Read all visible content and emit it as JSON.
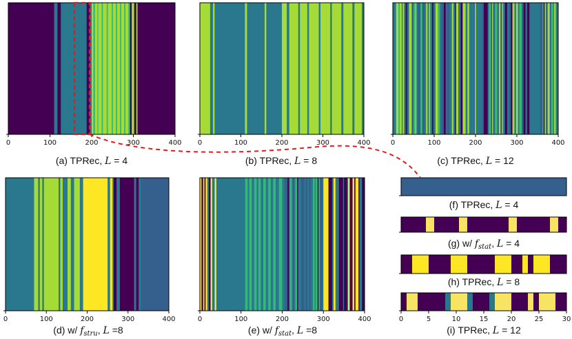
{
  "colors": {
    "dark": "#440154",
    "teal": "#2a788e",
    "slate": "#355f8d",
    "green": "#35b779",
    "lime": "#a5db36",
    "yellow": "#fde725",
    "paleyellow": "#f7e463",
    "highlight": "#e31a1c"
  },
  "chart_data": [
    {
      "id": "a",
      "type": "heatmap",
      "xlim": [
        0,
        400
      ],
      "xticks": [
        0,
        100,
        200,
        300,
        400
      ],
      "caption": {
        "prefix": "(a) TPRec, ",
        "var": "L",
        "eq": " = 4"
      },
      "bands": [
        [
          0,
          110,
          "dark"
        ],
        [
          110,
          118,
          "teal"
        ],
        [
          118,
          126,
          "dark"
        ],
        [
          126,
          188,
          "teal"
        ],
        [
          188,
          196,
          "dark"
        ],
        [
          196,
          200,
          "teal"
        ],
        [
          200,
          204,
          "lime"
        ],
        [
          204,
          208,
          "green"
        ],
        [
          208,
          214,
          "lime"
        ],
        [
          214,
          216,
          "green"
        ],
        [
          216,
          224,
          "lime"
        ],
        [
          224,
          227,
          "green"
        ],
        [
          227,
          236,
          "lime"
        ],
        [
          236,
          239,
          "green"
        ],
        [
          239,
          248,
          "lime"
        ],
        [
          248,
          251,
          "green"
        ],
        [
          251,
          258,
          "lime"
        ],
        [
          258,
          261,
          "green"
        ],
        [
          261,
          268,
          "lime"
        ],
        [
          268,
          271,
          "green"
        ],
        [
          271,
          278,
          "lime"
        ],
        [
          278,
          281,
          "green"
        ],
        [
          281,
          288,
          "lime"
        ],
        [
          288,
          292,
          "green"
        ],
        [
          292,
          296,
          "dark"
        ],
        [
          296,
          302,
          "lime"
        ],
        [
          302,
          307,
          "dark"
        ],
        [
          307,
          310,
          "lime"
        ],
        [
          310,
          400,
          "dark"
        ]
      ]
    },
    {
      "id": "b",
      "type": "heatmap",
      "xlim": [
        0,
        400
      ],
      "xticks": [
        0,
        100,
        200,
        300,
        400
      ],
      "caption": {
        "prefix": "(b) TPRec, ",
        "var": "L",
        "eq": " = 8"
      },
      "bands": [
        [
          0,
          25,
          "lime"
        ],
        [
          25,
          32,
          "teal"
        ],
        [
          32,
          36,
          "lime"
        ],
        [
          36,
          110,
          "teal"
        ],
        [
          110,
          115,
          "lime"
        ],
        [
          115,
          158,
          "teal"
        ],
        [
          158,
          162,
          "lime"
        ],
        [
          162,
          200,
          "teal"
        ],
        [
          200,
          212,
          "lime"
        ],
        [
          212,
          218,
          "teal"
        ],
        [
          218,
          240,
          "lime"
        ],
        [
          240,
          244,
          "teal"
        ],
        [
          244,
          262,
          "lime"
        ],
        [
          262,
          266,
          "teal"
        ],
        [
          266,
          290,
          "lime"
        ],
        [
          290,
          294,
          "teal"
        ],
        [
          294,
          318,
          "lime"
        ],
        [
          318,
          322,
          "teal"
        ],
        [
          322,
          345,
          "lime"
        ],
        [
          345,
          350,
          "teal"
        ],
        [
          350,
          372,
          "lime"
        ],
        [
          372,
          377,
          "teal"
        ],
        [
          377,
          395,
          "lime"
        ],
        [
          395,
          400,
          "teal"
        ]
      ]
    },
    {
      "id": "c",
      "type": "heatmap",
      "xlim": [
        0,
        400
      ],
      "xticks": [
        0,
        100,
        200,
        300,
        400
      ],
      "caption": {
        "prefix": "(c) TPRec, ",
        "var": "L",
        "eq": " = 12"
      },
      "pattern": {
        "seed": 17,
        "minWidth": 2,
        "maxWidth": 6,
        "palette": [
          "teal",
          "lime",
          "slate",
          "teal",
          "green",
          "dark",
          "lime",
          "teal"
        ]
      }
    },
    {
      "id": "d",
      "type": "heatmap",
      "xlim": [
        0,
        400
      ],
      "xticks": [
        0,
        100,
        200,
        300,
        400
      ],
      "caption": {
        "prefix": "(d) w/ ",
        "var": "f",
        "sub": "stru",
        "mid": ", ",
        "var2": "L",
        "eq": " =8"
      },
      "bands": [
        [
          0,
          70,
          "teal"
        ],
        [
          70,
          80,
          "lime"
        ],
        [
          80,
          84,
          "teal"
        ],
        [
          84,
          90,
          "lime"
        ],
        [
          90,
          94,
          "teal"
        ],
        [
          94,
          130,
          "lime"
        ],
        [
          130,
          134,
          "teal"
        ],
        [
          134,
          140,
          "lime"
        ],
        [
          140,
          152,
          "teal"
        ],
        [
          152,
          160,
          "lime"
        ],
        [
          160,
          168,
          "teal"
        ],
        [
          168,
          182,
          "lime"
        ],
        [
          182,
          190,
          "teal"
        ],
        [
          190,
          250,
          "yellow"
        ],
        [
          250,
          256,
          "teal"
        ],
        [
          256,
          262,
          "yellow"
        ],
        [
          262,
          265,
          "teal"
        ],
        [
          265,
          272,
          "dark"
        ],
        [
          272,
          280,
          "teal"
        ],
        [
          280,
          284,
          "dark"
        ],
        [
          284,
          315,
          "dark"
        ],
        [
          315,
          320,
          "teal"
        ],
        [
          320,
          326,
          "dark"
        ],
        [
          326,
          332,
          "teal"
        ],
        [
          332,
          400,
          "slate"
        ]
      ]
    },
    {
      "id": "e",
      "type": "heatmap",
      "xlim": [
        0,
        400
      ],
      "xticks": [
        0,
        100,
        200,
        300,
        400
      ],
      "caption": {
        "prefix": "(e) w/ ",
        "var": "f",
        "sub": "stat",
        "mid": ", ",
        "var2": "L",
        "eq": " =8"
      },
      "bands": [
        [
          0,
          4,
          "yellow"
        ],
        [
          4,
          8,
          "dark"
        ],
        [
          8,
          11,
          "yellow"
        ],
        [
          11,
          14,
          "dark"
        ],
        [
          14,
          18,
          "yellow"
        ],
        [
          18,
          22,
          "teal"
        ],
        [
          22,
          26,
          "dark"
        ],
        [
          26,
          30,
          "yellow"
        ],
        [
          30,
          36,
          "teal"
        ],
        [
          36,
          40,
          "yellow"
        ],
        [
          40,
          110,
          "teal"
        ],
        [
          110,
          116,
          "green"
        ],
        [
          116,
          120,
          "teal"
        ],
        [
          120,
          126,
          "green"
        ],
        [
          126,
          132,
          "teal"
        ],
        [
          132,
          138,
          "green"
        ],
        [
          138,
          142,
          "teal"
        ],
        [
          142,
          148,
          "green"
        ],
        [
          148,
          154,
          "teal"
        ],
        [
          154,
          160,
          "green"
        ],
        [
          160,
          166,
          "teal"
        ],
        [
          166,
          172,
          "green"
        ],
        [
          172,
          178,
          "teal"
        ],
        [
          178,
          184,
          "green"
        ],
        [
          184,
          192,
          "teal"
        ],
        [
          192,
          200,
          "green"
        ],
        [
          200,
          206,
          "teal"
        ]
      ],
      "pattern": {
        "from": 206,
        "to": 400,
        "seed": 5,
        "minWidth": 2,
        "maxWidth": 5,
        "segments": [
          [
            206,
            300,
            [
              "teal",
              "dark",
              "green",
              "teal",
              "slate"
            ]
          ],
          [
            300,
            400,
            [
              "yellow",
              "dark",
              "yellow",
              "dark",
              "teal"
            ]
          ]
        ]
      }
    },
    {
      "id": "f",
      "type": "heatmap",
      "xlim": [
        0,
        30
      ],
      "caption": {
        "prefix": "(f) TPRec, ",
        "var": "L",
        "eq": " = 4"
      },
      "bands": [
        [
          0,
          30,
          "slate"
        ]
      ]
    },
    {
      "id": "g",
      "type": "heatmap",
      "xlim": [
        0,
        30
      ],
      "caption": {
        "prefix": "(g) w/ ",
        "var": "f",
        "sub": "stat",
        "mid": ", ",
        "var2": "L",
        "eq": " = 4"
      },
      "bands": [
        [
          0,
          4.5,
          "dark"
        ],
        [
          4.5,
          6,
          "paleyellow"
        ],
        [
          6,
          10.5,
          "dark"
        ],
        [
          10.5,
          12,
          "paleyellow"
        ],
        [
          12,
          19.5,
          "dark"
        ],
        [
          19.5,
          21,
          "paleyellow"
        ],
        [
          21,
          27,
          "dark"
        ],
        [
          27,
          28.5,
          "paleyellow"
        ],
        [
          28.5,
          30,
          "dark"
        ]
      ]
    },
    {
      "id": "h",
      "type": "heatmap",
      "xlim": [
        0,
        30
      ],
      "caption": {
        "prefix": "(h) TPRec, ",
        "var": "L",
        "eq": " = 8"
      },
      "bands": [
        [
          0,
          2,
          "dark"
        ],
        [
          2,
          5,
          "yellow"
        ],
        [
          5,
          9,
          "dark"
        ],
        [
          9,
          12,
          "yellow"
        ],
        [
          12,
          17,
          "dark"
        ],
        [
          17,
          20,
          "yellow"
        ],
        [
          20,
          22,
          "dark"
        ],
        [
          22,
          23,
          "yellow"
        ],
        [
          23,
          24,
          "dark"
        ],
        [
          24,
          27,
          "yellow"
        ],
        [
          27,
          30,
          "dark"
        ]
      ]
    },
    {
      "id": "i",
      "type": "heatmap",
      "xlim": [
        0,
        30
      ],
      "xticks": [
        0,
        5,
        10,
        15,
        20,
        25,
        30
      ],
      "caption": {
        "prefix": "(i) TPRec, ",
        "var": "L",
        "eq": " = 12"
      },
      "bands": [
        [
          0,
          1,
          "dark"
        ],
        [
          1,
          3,
          "paleyellow"
        ],
        [
          3,
          8,
          "dark"
        ],
        [
          8,
          9,
          "teal"
        ],
        [
          9,
          12,
          "paleyellow"
        ],
        [
          12,
          13,
          "teal"
        ],
        [
          13,
          16,
          "dark"
        ],
        [
          16,
          17,
          "teal"
        ],
        [
          17,
          20,
          "paleyellow"
        ],
        [
          20,
          23,
          "dark"
        ],
        [
          23,
          24,
          "paleyellow"
        ],
        [
          24,
          25,
          "dark"
        ],
        [
          25,
          28,
          "paleyellow"
        ],
        [
          28,
          30,
          "dark"
        ]
      ]
    }
  ]
}
